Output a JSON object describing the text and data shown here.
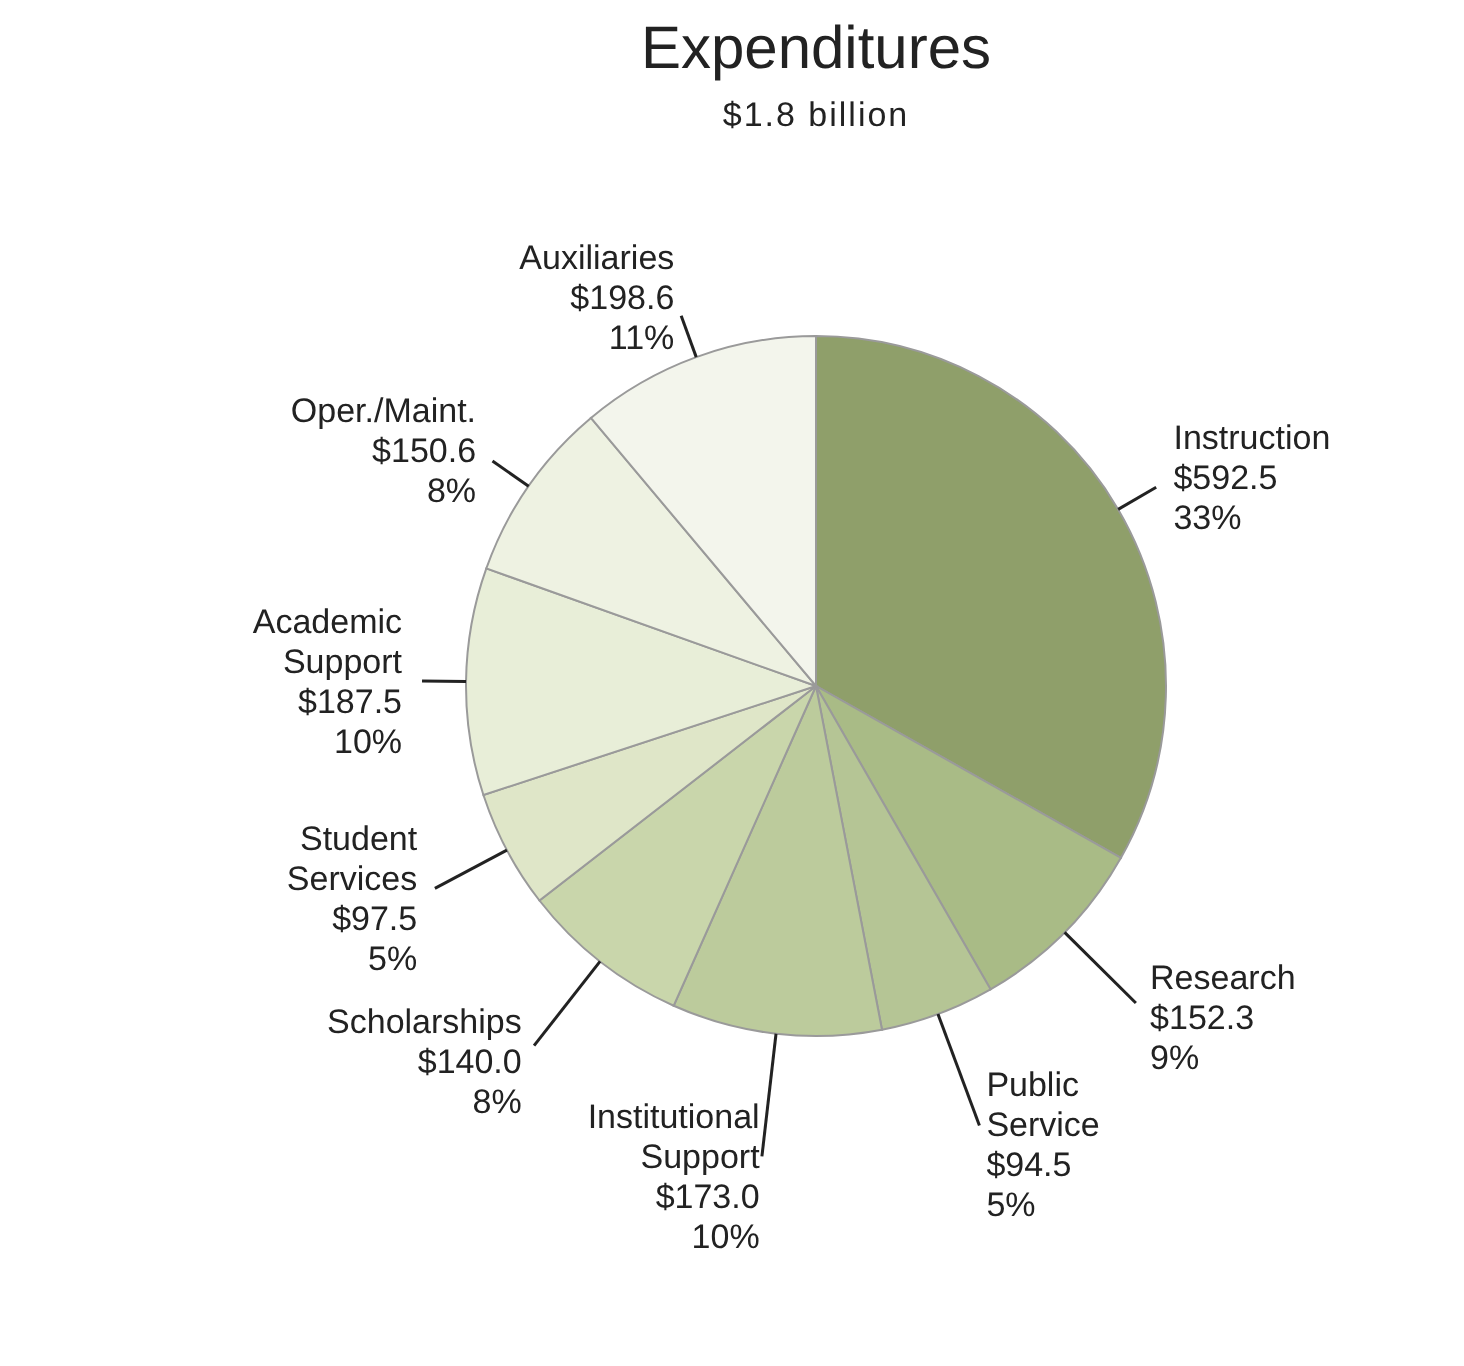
{
  "chart_data": {
    "type": "pie",
    "title": "Expenditures",
    "subtitle": "$1.8 billion",
    "categories": [
      "Instruction",
      "Research",
      "Public Service",
      "Institutional Support",
      "Scholarships",
      "Student Services",
      "Academic Support",
      "Oper./Maint.",
      "Auxiliaries"
    ],
    "values": [
      592.5,
      152.3,
      94.5,
      173.0,
      140.0,
      97.5,
      187.5,
      150.6,
      198.6
    ],
    "value_labels": [
      "$592.5\n33%",
      "$152.3\n9%",
      "$94.5\n5%",
      "$173.0\n10%",
      "$140.0\n8%",
      "$97.5\n5%",
      "$187.5\n10%",
      "$150.6\n8%",
      "$198.6\n11%"
    ],
    "colors": [
      "#8f9f6a",
      "#a9bb86",
      "#b5c595",
      "#bccb9c",
      "#c9d6ab",
      "#dfe6c8",
      "#e8eed8",
      "#eef2e2",
      "#f3f5ec"
    ]
  }
}
